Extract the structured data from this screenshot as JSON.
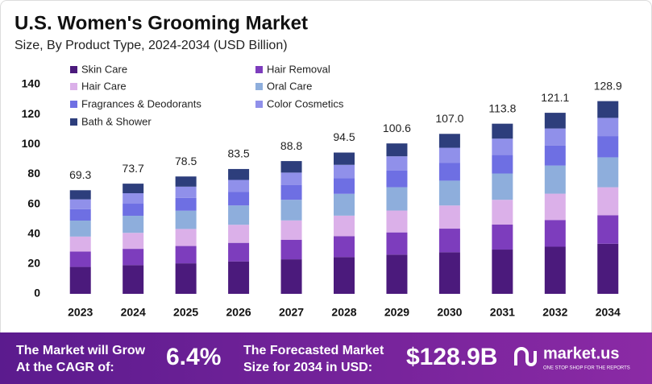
{
  "chart_data": {
    "type": "stacked-bar",
    "title": "U.S. Women's Grooming Market",
    "subtitle": "Size, By Product Type, 2024-2034 (USD Billion)",
    "categories": [
      "2023",
      "2024",
      "2025",
      "2026",
      "2027",
      "2028",
      "2029",
      "2030",
      "2031",
      "2032",
      "2034"
    ],
    "series": [
      {
        "name": "Skin Care",
        "color": "#4b1a7c",
        "values": [
          18.0,
          19.2,
          20.4,
          21.7,
          23.1,
          24.6,
          26.2,
          27.8,
          29.6,
          31.5,
          33.5
        ]
      },
      {
        "name": "Hair Removal",
        "color": "#7d3dbd",
        "values": [
          10.3,
          10.9,
          11.6,
          12.4,
          13.1,
          14.0,
          14.9,
          15.8,
          16.8,
          17.9,
          19.1
        ]
      },
      {
        "name": "Hair Care",
        "color": "#dbb0e9",
        "values": [
          10.0,
          10.7,
          11.4,
          12.1,
          12.9,
          13.7,
          14.6,
          15.5,
          16.5,
          17.6,
          18.7
        ]
      },
      {
        "name": "Oral Care",
        "color": "#8eaedc",
        "values": [
          10.7,
          11.4,
          12.2,
          12.9,
          13.8,
          14.6,
          15.6,
          16.6,
          17.6,
          18.8,
          20.0
        ]
      },
      {
        "name": "Fragrances & Deodorants",
        "color": "#6e6fe3",
        "values": [
          7.6,
          8.1,
          8.6,
          9.2,
          9.8,
          10.4,
          11.1,
          11.8,
          12.5,
          13.3,
          14.2
        ]
      },
      {
        "name": "Color Cosmetics",
        "color": "#9090ea",
        "values": [
          6.6,
          7.0,
          7.5,
          7.9,
          8.4,
          9.0,
          9.6,
          10.2,
          10.8,
          11.5,
          12.2
        ]
      },
      {
        "name": "Bath & Shower",
        "color": "#2d3e7c",
        "values": [
          6.1,
          6.4,
          6.8,
          7.3,
          7.7,
          8.2,
          8.6,
          9.3,
          10.0,
          10.5,
          11.2
        ]
      }
    ],
    "totals": [
      69.3,
      73.7,
      78.5,
      83.5,
      88.8,
      94.5,
      100.6,
      {
        "value": 107.0,
        "label": "107.0"
      },
      113.8,
      121.1,
      128.9
    ],
    "ylim": [
      0,
      140
    ],
    "yticks": [
      0,
      20,
      40,
      60,
      80,
      100,
      120,
      140
    ],
    "grid": false
  },
  "footer": {
    "cagr_text": {
      "lines": [
        "The Market will Grow",
        "At the CAGR of:"
      ]
    },
    "cagr_value": "6.4%",
    "forecast_text": {
      "lines": [
        "The Forecasted Market",
        "Size for 2034 in USD:"
      ]
    },
    "forecast_value": "$128.9B",
    "brand": "market.us",
    "tagline": "ONE STOP SHOP FOR THE REPORTS"
  }
}
